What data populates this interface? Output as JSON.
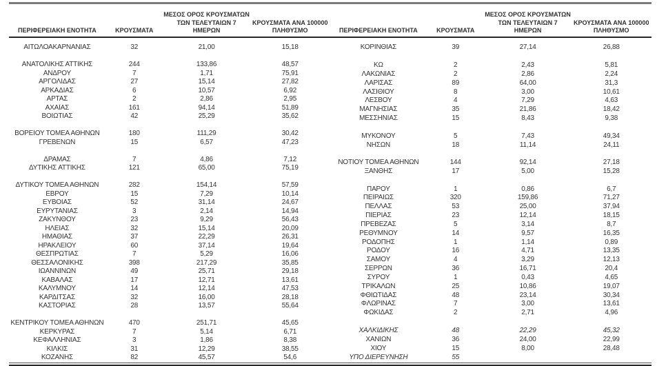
{
  "colors": {
    "top_rule_gray": "#7a7a7a",
    "header_rule_dark": "#262626",
    "text": "#343434"
  },
  "table": {
    "headers": {
      "region": "ΠΕΡΙΦΕΡΕΙΑΚΗ ΕΝΟΤΗΤΑ",
      "cases": "ΚΡΟΥΣΜΑΤΑ",
      "avg7": [
        "ΜΕΣΟΣ ΟΡΟΣ ΚΡΟΥΣΜΑΤΩΝ",
        "ΤΩΝ ΤΕΛΕΥΤΑΙΩΝ 7",
        "ΗΜΕΡΩΝ"
      ],
      "per100k": [
        "ΚΡΟΥΣΜΑΤΑ ΑΝΑ 100000",
        "ΠΛΗΘΥΣΜΟ"
      ]
    },
    "left": {
      "sections": [
        {
          "rows": [
            {
              "region": "ΑΙΤΩΛΟΑΚΑΡΝΑΝΙΑΣ",
              "cases": "32",
              "avg7": "21,00",
              "per100k": "15,18"
            }
          ]
        },
        {
          "rows": [
            {
              "region": "ΑΝΑΤΟΛΙΚΗΣ ΑΤΤΙΚΗΣ",
              "cases": "244",
              "avg7": "133,86",
              "per100k": "48,57"
            },
            {
              "region": "ΑΝΔΡΟΥ",
              "cases": "7",
              "avg7": "1,71",
              "per100k": "75,91"
            },
            {
              "region": "ΑΡΓΟΛΙΔΑΣ",
              "cases": "27",
              "avg7": "15,14",
              "per100k": "27,82"
            },
            {
              "region": "ΑΡΚΑΔΙΑΣ",
              "cases": "6",
              "avg7": "10,57",
              "per100k": "6,92"
            },
            {
              "region": "ΑΡΤΑΣ",
              "cases": "2",
              "avg7": "2,86",
              "per100k": "2,95"
            },
            {
              "region": "ΑΧΑΪΑΣ",
              "cases": "161",
              "avg7": "94,14",
              "per100k": "51,89"
            },
            {
              "region": "ΒΟΙΩΤΙΑΣ",
              "cases": "42",
              "avg7": "25,29",
              "per100k": "35,62"
            }
          ]
        },
        {
          "rows": [
            {
              "region": "ΒΟΡΕΙΟΥ ΤΟΜΕΑ ΑΘΗΝΩΝ",
              "cases": "180",
              "avg7": "111,29",
              "per100k": "30,42"
            },
            {
              "region": "ΓΡΕΒΕΝΩΝ",
              "cases": "15",
              "avg7": "6,57",
              "per100k": "47,23"
            }
          ]
        },
        {
          "rows": [
            {
              "region": "ΔΡΑΜΑΣ",
              "cases": "7",
              "avg7": "4,86",
              "per100k": "7,12"
            },
            {
              "region": "ΔΥΤΙΚΗΣ ΑΤΤΙΚΗΣ",
              "cases": "121",
              "avg7": "65,00",
              "per100k": "75,19"
            }
          ]
        },
        {
          "rows": [
            {
              "region": "ΔΥΤΙΚΟΥ ΤΟΜΕΑ ΑΘΗΝΩΝ",
              "cases": "282",
              "avg7": "154,14",
              "per100k": "57,59"
            },
            {
              "region": "ΕΒΡΟΥ",
              "cases": "15",
              "avg7": "7,29",
              "per100k": "10,14"
            },
            {
              "region": "ΕΥΒΟΙΑΣ",
              "cases": "52",
              "avg7": "31,14",
              "per100k": "24,67"
            },
            {
              "region": "ΕΥΡΥΤΑΝΙΑΣ",
              "cases": "3",
              "avg7": "2,14",
              "per100k": "14,94"
            },
            {
              "region": "ΖΑΚΥΝΘΟΥ",
              "cases": "23",
              "avg7": "9,29",
              "per100k": "56,43"
            },
            {
              "region": "ΗΛΕΙΑΣ",
              "cases": "32",
              "avg7": "15,14",
              "per100k": "20,09"
            },
            {
              "region": "ΗΜΑΘΙΑΣ",
              "cases": "37",
              "avg7": "22,29",
              "per100k": "26,31"
            },
            {
              "region": "ΗΡΑΚΛΕΙΟΥ",
              "cases": "60",
              "avg7": "37,14",
              "per100k": "19,64"
            },
            {
              "region": "ΘΕΣΠΡΩΤΙΑΣ",
              "cases": "7",
              "avg7": "5,29",
              "per100k": "16,06"
            },
            {
              "region": "ΘΕΣΣΑΛΟΝΙΚΗΣ",
              "cases": "398",
              "avg7": "217,29",
              "per100k": "35,85"
            },
            {
              "region": "ΙΩΑΝΝΙΝΩΝ",
              "cases": "49",
              "avg7": "25,71",
              "per100k": "29,18"
            },
            {
              "region": "ΚΑΒΑΛΑΣ",
              "cases": "17",
              "avg7": "12,71",
              "per100k": "13,61"
            },
            {
              "region": "ΚΑΛΥΜΝΟΥ",
              "cases": "14",
              "avg7": "12,14",
              "per100k": "47,53"
            },
            {
              "region": "ΚΑΡΔΙΤΣΑΣ",
              "cases": "32",
              "avg7": "16,00",
              "per100k": "28,18"
            },
            {
              "region": "ΚΑΣΤΟΡΙΑΣ",
              "cases": "28",
              "avg7": "13,57",
              "per100k": "55,64"
            }
          ]
        },
        {
          "rows": [
            {
              "region": "ΚΕΝΤΡΙΚΟΥ ΤΟΜΕΑ ΑΘΗΝΩΝ",
              "cases": "470",
              "avg7": "251,71",
              "per100k": "45,65"
            },
            {
              "region": "ΚΕΡΚΥΡΑΣ",
              "cases": "7",
              "avg7": "5,14",
              "per100k": "6,71"
            },
            {
              "region": "ΚΕΦΑΛΛΗΝΙΑΣ",
              "cases": "3",
              "avg7": "1,86",
              "per100k": "8,38"
            },
            {
              "region": "ΚΙΛΚΙΣ",
              "cases": "31",
              "avg7": "12,29",
              "per100k": "38,55"
            },
            {
              "region": "ΚΟΖΑΝΗΣ",
              "cases": "82",
              "avg7": "45,57",
              "per100k": "54,6"
            }
          ]
        }
      ]
    },
    "right": {
      "sections": [
        {
          "rows": [
            {
              "region": "ΚΟΡΙΝΘΙΑΣ",
              "cases": "39",
              "avg7": "27,14",
              "per100k": "26,88"
            }
          ]
        },
        {
          "rows": [
            {
              "region": "ΚΩ",
              "cases": "2",
              "avg7": "2,43",
              "per100k": "5,81"
            },
            {
              "region": "ΛΑΚΩΝΙΑΣ",
              "cases": "2",
              "avg7": "2,86",
              "per100k": "2,24"
            },
            {
              "region": "ΛΑΡΙΣΑΣ",
              "cases": "89",
              "avg7": "64,00",
              "per100k": "31,3"
            },
            {
              "region": "ΛΑΣΙΘΙΟΥ",
              "cases": "8",
              "avg7": "3,00",
              "per100k": "10,61"
            },
            {
              "region": "ΛΕΣΒΟΥ",
              "cases": "4",
              "avg7": "7,29",
              "per100k": "4,63"
            },
            {
              "region": "ΜΑΓΝΗΣΙΑΣ",
              "cases": "35",
              "avg7": "21,86",
              "per100k": "18,42"
            },
            {
              "region": "ΜΕΣΣΗΝΙΑΣ",
              "cases": "15",
              "avg7": "8,43",
              "per100k": "9,38"
            }
          ]
        },
        {
          "rows": [
            {
              "region": "ΜΥΚΟΝΟΥ",
              "cases": "5",
              "avg7": "7,43",
              "per100k": "49,34"
            },
            {
              "region": "ΝΗΣΩΝ",
              "cases": "18",
              "avg7": "11,14",
              "per100k": "24,11"
            }
          ]
        },
        {
          "rows": [
            {
              "region": "ΝΟΤΙΟΥ ΤΟΜΕΑ ΑΘΗΝΩΝ",
              "cases": "144",
              "avg7": "92,14",
              "per100k": "27,18"
            },
            {
              "region": "ΞΑΝΘΗΣ",
              "cases": "17",
              "avg7": "5,00",
              "per100k": "15,28"
            }
          ]
        },
        {
          "rows": [
            {
              "region": "ΠΑΡΟΥ",
              "cases": "1",
              "avg7": "0,86",
              "per100k": "6,7"
            },
            {
              "region": "ΠΕΙΡΑΙΩΣ",
              "cases": "320",
              "avg7": "159,86",
              "per100k": "71,27"
            },
            {
              "region": "ΠΕΛΛΑΣ",
              "cases": "53",
              "avg7": "25,00",
              "per100k": "37,94"
            },
            {
              "region": "ΠΙΕΡΙΑΣ",
              "cases": "23",
              "avg7": "12,14",
              "per100k": "18,15"
            },
            {
              "region": "ΠΡΕΒΕΖΑΣ",
              "cases": "5",
              "avg7": "3,14",
              "per100k": "8,7"
            },
            {
              "region": "ΡΕΘΥΜΝΟΥ",
              "cases": "14",
              "avg7": "9,57",
              "per100k": "16,35"
            },
            {
              "region": "ΡΟΔΟΠΗΣ",
              "cases": "1",
              "avg7": "1,14",
              "per100k": "0,89"
            },
            {
              "region": "ΡΟΔΟΥ",
              "cases": "16",
              "avg7": "4,71",
              "per100k": "13,35"
            },
            {
              "region": "ΣΑΜΟΥ",
              "cases": "4",
              "avg7": "3,29",
              "per100k": "12,13"
            },
            {
              "region": "ΣΕΡΡΩΝ",
              "cases": "36",
              "avg7": "16,71",
              "per100k": "20,4"
            },
            {
              "region": "ΣΥΡΟΥ",
              "cases": "1",
              "avg7": "0,43",
              "per100k": "4,65"
            },
            {
              "region": "ΤΡΙΚΑΛΩΝ",
              "cases": "25",
              "avg7": "10,86",
              "per100k": "19,07"
            },
            {
              "region": "ΦΘΙΩΤΙΔΑΣ",
              "cases": "48",
              "avg7": "23,14",
              "per100k": "30,34"
            },
            {
              "region": "ΦΛΩΡΙΝΑΣ",
              "cases": "7",
              "avg7": "3,00",
              "per100k": "13,61"
            },
            {
              "region": "ΦΩΚΙΔΑΣ",
              "cases": "2",
              "avg7": "2,71",
              "per100k": "4,96"
            }
          ]
        },
        {
          "rows": [
            {
              "region": "ΧΑΛΚΙΔΙΚΗΣ",
              "cases": "48",
              "avg7": "22,29",
              "per100k": "45,32",
              "italic": true
            },
            {
              "region": "ΧΑΝΙΩΝ",
              "cases": "36",
              "avg7": "24,00",
              "per100k": "22,99"
            },
            {
              "region": "ΧΙΟΥ",
              "cases": "15",
              "avg7": "8,00",
              "per100k": "28,48"
            },
            {
              "region": "ΥΠΟ ΔΙΕΡΕΥΝΗΣΗ",
              "cases": "55",
              "avg7": "",
              "per100k": "",
              "italic": true
            }
          ]
        }
      ]
    }
  }
}
